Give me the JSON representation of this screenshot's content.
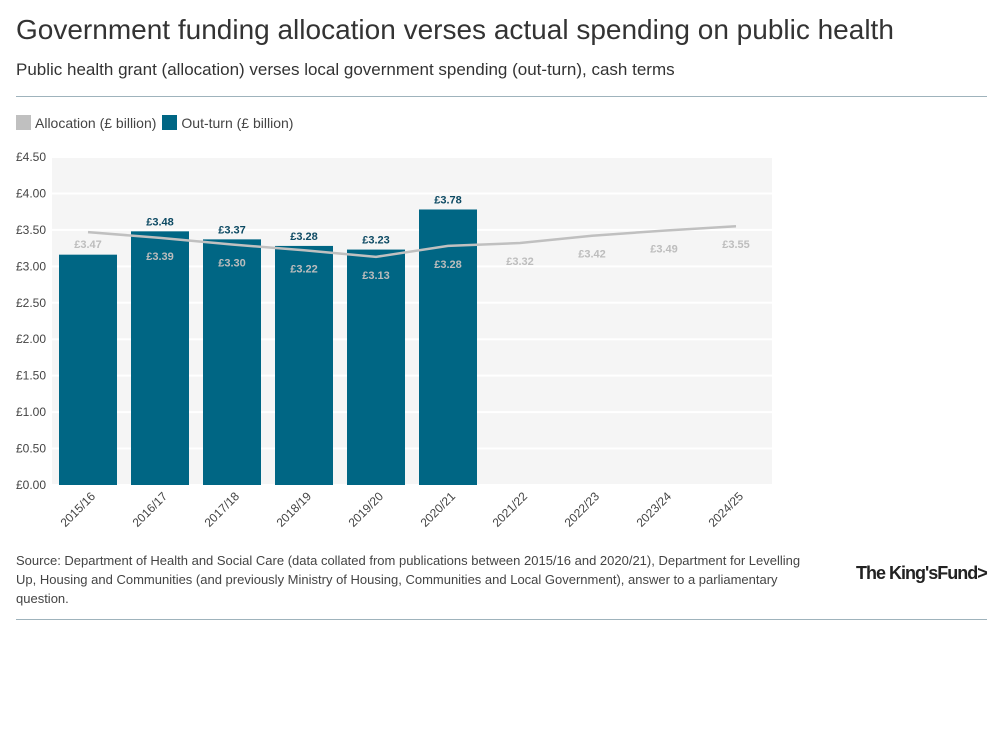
{
  "title": "Government funding allocation verses actual spending on public health",
  "subtitle": "Public health grant (allocation) verses local government spending (out-turn), cash terms",
  "source": "Source: Department of Health and Social Care (data collated from publications between 2015/16 and 2020/21), Department for Levelling Up, Housing and Communities (and previously Ministry of Housing, Communities and Local Government), answer to a parliamentary question.",
  "logo": "The King's Fund>",
  "colors": {
    "allocation": "#c0c0c0",
    "outturn": "#006684",
    "plot_bg": "#f5f5f5"
  },
  "chart_data": {
    "type": "bar+line",
    "categories": [
      "2015/16",
      "2016/17",
      "2017/18",
      "2018/19",
      "2019/20",
      "2020/21",
      "2021/22",
      "2022/23",
      "2023/24",
      "2024/25"
    ],
    "series": [
      {
        "name": "Allocation (£ billion)",
        "type": "line",
        "values": [
          3.47,
          3.39,
          3.3,
          3.22,
          3.13,
          3.28,
          3.32,
          3.42,
          3.49,
          3.55
        ],
        "labels": [
          "£3.47",
          "£3.39",
          "£3.30",
          "£3.22",
          "£3.13",
          "£3.28",
          "£3.32",
          "£3.42",
          "£3.49",
          "£3.55"
        ]
      },
      {
        "name": "Out-turn (£ billion)",
        "type": "bar",
        "values": [
          3.16,
          3.48,
          3.37,
          3.28,
          3.23,
          3.78,
          null,
          null,
          null,
          null
        ],
        "labels": [
          "",
          "£3.48",
          "£3.37",
          "£3.28",
          "£3.23",
          "£3.78",
          "",
          "",
          "",
          ""
        ]
      }
    ],
    "yticks": [
      "£0.00",
      "£0.50",
      "£1.00",
      "£1.50",
      "£2.00",
      "£2.50",
      "£3.00",
      "£3.50",
      "£4.00",
      "£4.50"
    ],
    "ylim": [
      0,
      4.5
    ],
    "grid": true,
    "legend": "top-left"
  }
}
